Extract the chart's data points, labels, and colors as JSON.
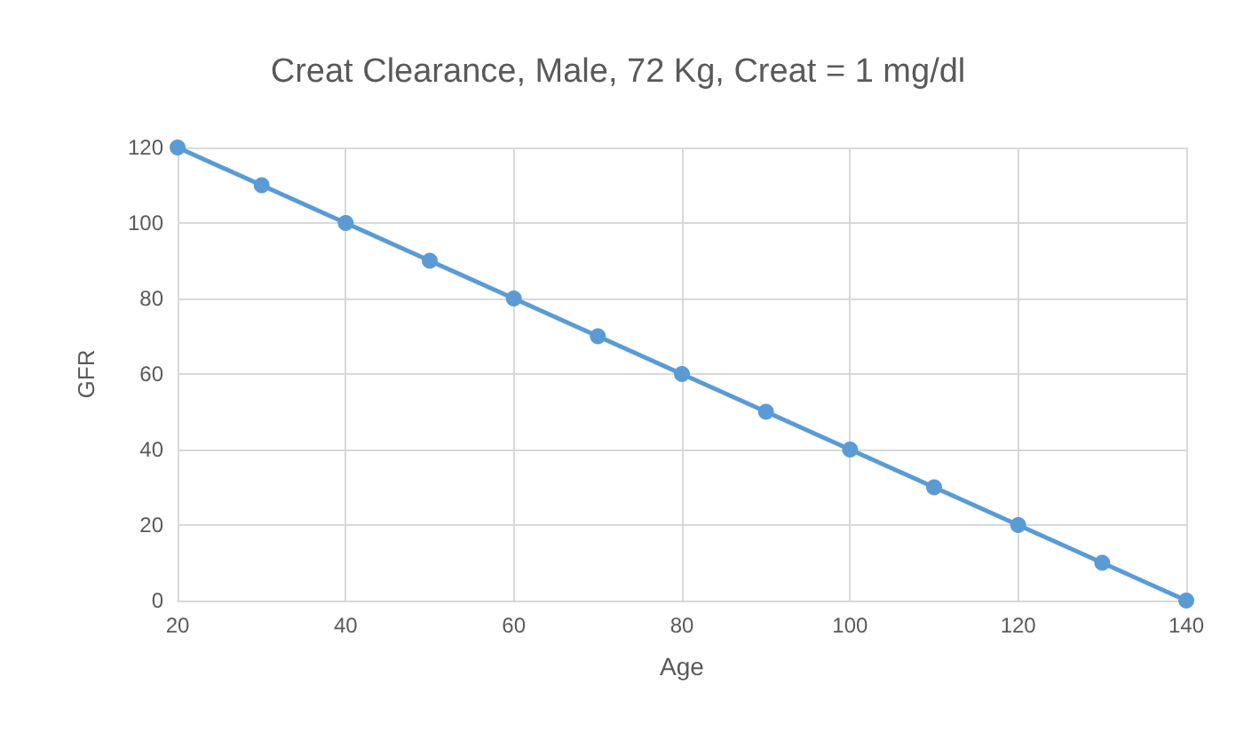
{
  "chart_data": {
    "type": "line",
    "title": "Creat Clearance, Male, 72 Kg, Creat = 1 mg/dl",
    "xlabel": "Age",
    "ylabel": "GFR",
    "x": [
      20,
      30,
      40,
      50,
      60,
      70,
      80,
      90,
      100,
      110,
      120,
      130,
      140
    ],
    "series": [
      {
        "color": "#5b9bd5",
        "values": [
          120,
          110,
          100,
          90,
          80,
          70,
          60,
          50,
          40,
          30,
          20,
          10,
          0
        ]
      }
    ],
    "xlim": [
      20,
      140
    ],
    "xticks": [
      20,
      40,
      60,
      80,
      100,
      120,
      140
    ],
    "ylim": [
      0,
      120
    ],
    "yticks": [
      0,
      20,
      40,
      60,
      80,
      100,
      120
    ],
    "grid": true,
    "marker": "circle",
    "line_style": "solid"
  }
}
